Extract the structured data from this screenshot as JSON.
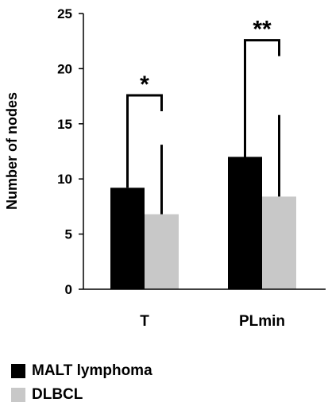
{
  "chart_data": {
    "type": "bar",
    "title": "",
    "xlabel": "",
    "ylabel": "Number of nodes",
    "ylim": [
      0,
      25
    ],
    "yticks": [
      0,
      5,
      10,
      15,
      20,
      25
    ],
    "categories": [
      "T",
      "PLmin"
    ],
    "series": [
      {
        "name": "MALT lymphoma",
        "values": [
          9.2,
          12.0
        ],
        "error_upper": [
          17.0,
          22.0
        ],
        "color": "#000000"
      },
      {
        "name": "DLBCL",
        "values": [
          6.8,
          8.4
        ],
        "error_upper": [
          13.1,
          15.8
        ],
        "color": "#c8c8c8"
      }
    ],
    "significance": [
      "*",
      "**"
    ],
    "grid": false,
    "legend_position": "bottom-left"
  }
}
